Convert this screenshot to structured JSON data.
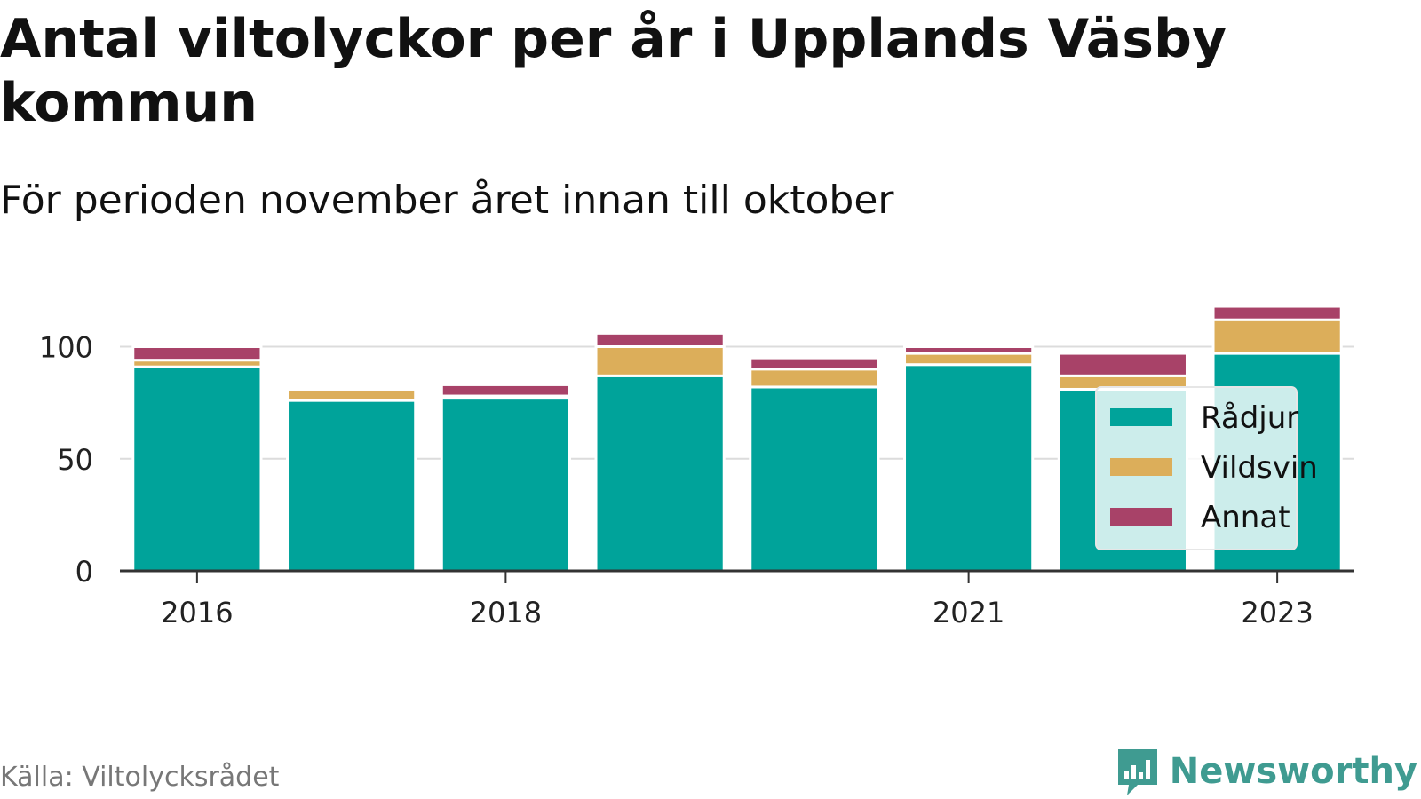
{
  "title": "Antal viltolyckor per år i Upplands Väsby kommun",
  "subtitle": "För perioden november året innan till oktober",
  "source": "Källa: Viltolycksrådet",
  "brand": "Newsworthy",
  "colors": {
    "radjur": "#00a39a",
    "vildsvin": "#dcae5a",
    "annat": "#a84268"
  },
  "chart_data": {
    "type": "bar",
    "stacked": true,
    "categories": [
      2016,
      2017,
      2018,
      2019,
      2020,
      2021,
      2022,
      2023
    ],
    "x_tick_labels": [
      "2016",
      "2018",
      "2021",
      "2023"
    ],
    "x_tick_values": [
      2016,
      2018,
      2021,
      2023
    ],
    "y_ticks": [
      0,
      50,
      100
    ],
    "ylim": [
      0,
      120
    ],
    "grid": true,
    "legend_position": "right",
    "series": [
      {
        "name": "Rådjur",
        "values": [
          91,
          76,
          77,
          87,
          82,
          92,
          81,
          97
        ]
      },
      {
        "name": "Vildsvin",
        "values": [
          3,
          5,
          1,
          13,
          8,
          5,
          6,
          15
        ]
      },
      {
        "name": "Annat",
        "values": [
          6,
          0,
          5,
          6,
          5,
          3,
          10,
          6
        ]
      }
    ]
  }
}
